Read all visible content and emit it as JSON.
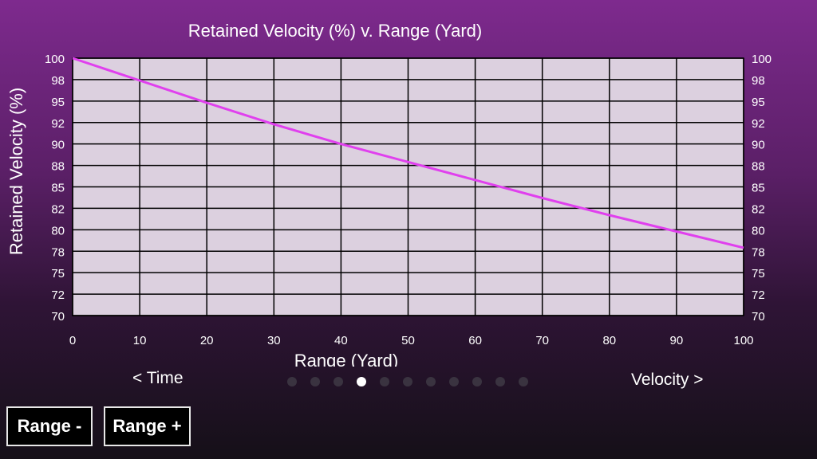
{
  "chart_data": {
    "type": "line",
    "title": "Retained Velocity (%) v. Range (Yard)",
    "xlabel": "Range (Yard)",
    "ylabel": "Retained Velocity (%)",
    "xlim": [
      0,
      100
    ],
    "ylim": [
      70,
      100
    ],
    "x_ticks": [
      "0",
      "10",
      "20",
      "30",
      "40",
      "50",
      "60",
      "70",
      "80",
      "90",
      "100"
    ],
    "y_ticks": [
      "100",
      "98",
      "95",
      "92",
      "90",
      "88",
      "85",
      "82",
      "80",
      "78",
      "75",
      "72",
      "70"
    ],
    "grid": true,
    "line_color": "#e040ee",
    "series": [
      {
        "x": [
          0,
          10,
          20,
          30,
          40,
          50,
          60,
          70,
          80,
          90,
          100
        ],
        "y": [
          100,
          97.4,
          94.8,
          92.3,
          90.0,
          87.9,
          85.8,
          83.7,
          81.7,
          79.8,
          77.9
        ]
      }
    ]
  },
  "nav": {
    "prev_label": "< Time",
    "next_label": "Velocity >",
    "page_count": 11,
    "current_page": 4
  },
  "buttons": {
    "range_minus": "Range -",
    "range_plus": "Range +"
  },
  "colors": {
    "plot_background": "#dcd0df",
    "grid": "#000000",
    "line": "#e040ee"
  }
}
